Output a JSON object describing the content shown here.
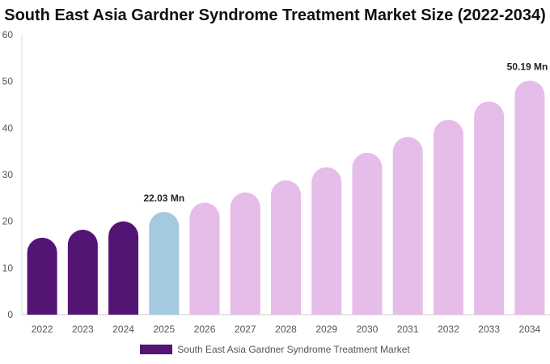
{
  "chart_data": {
    "type": "bar",
    "title": "South East Asia Gardner Syndrome Treatment Market Size (2022-2034)",
    "categories": [
      "2022",
      "2023",
      "2024",
      "2025",
      "2026",
      "2027",
      "2028",
      "2029",
      "2030",
      "2031",
      "2032",
      "2033",
      "2034"
    ],
    "series": [
      {
        "name": "South East Asia Gardner Syndrome Treatment Market",
        "values": [
          16.5,
          18.2,
          20.0,
          22.03,
          24.0,
          26.2,
          28.8,
          31.6,
          34.7,
          38.1,
          41.8,
          45.7,
          50.19
        ]
      }
    ],
    "data_labels": [
      {
        "category": "2025",
        "text": "22.03 Mn"
      },
      {
        "category": "2034",
        "text": "50.19 Mn"
      }
    ],
    "ylim": [
      0,
      60
    ],
    "yticks": [
      0,
      10,
      20,
      30,
      40,
      50,
      60
    ],
    "xlabel": "",
    "ylabel": "",
    "grid": false,
    "legend_position": "bottom",
    "colors": {
      "historical": "#541473",
      "base_year": "#a3cade",
      "forecast": "#e6bde9"
    },
    "historical_categories": [
      "2022",
      "2023",
      "2024"
    ],
    "base_year_category": "2025"
  }
}
